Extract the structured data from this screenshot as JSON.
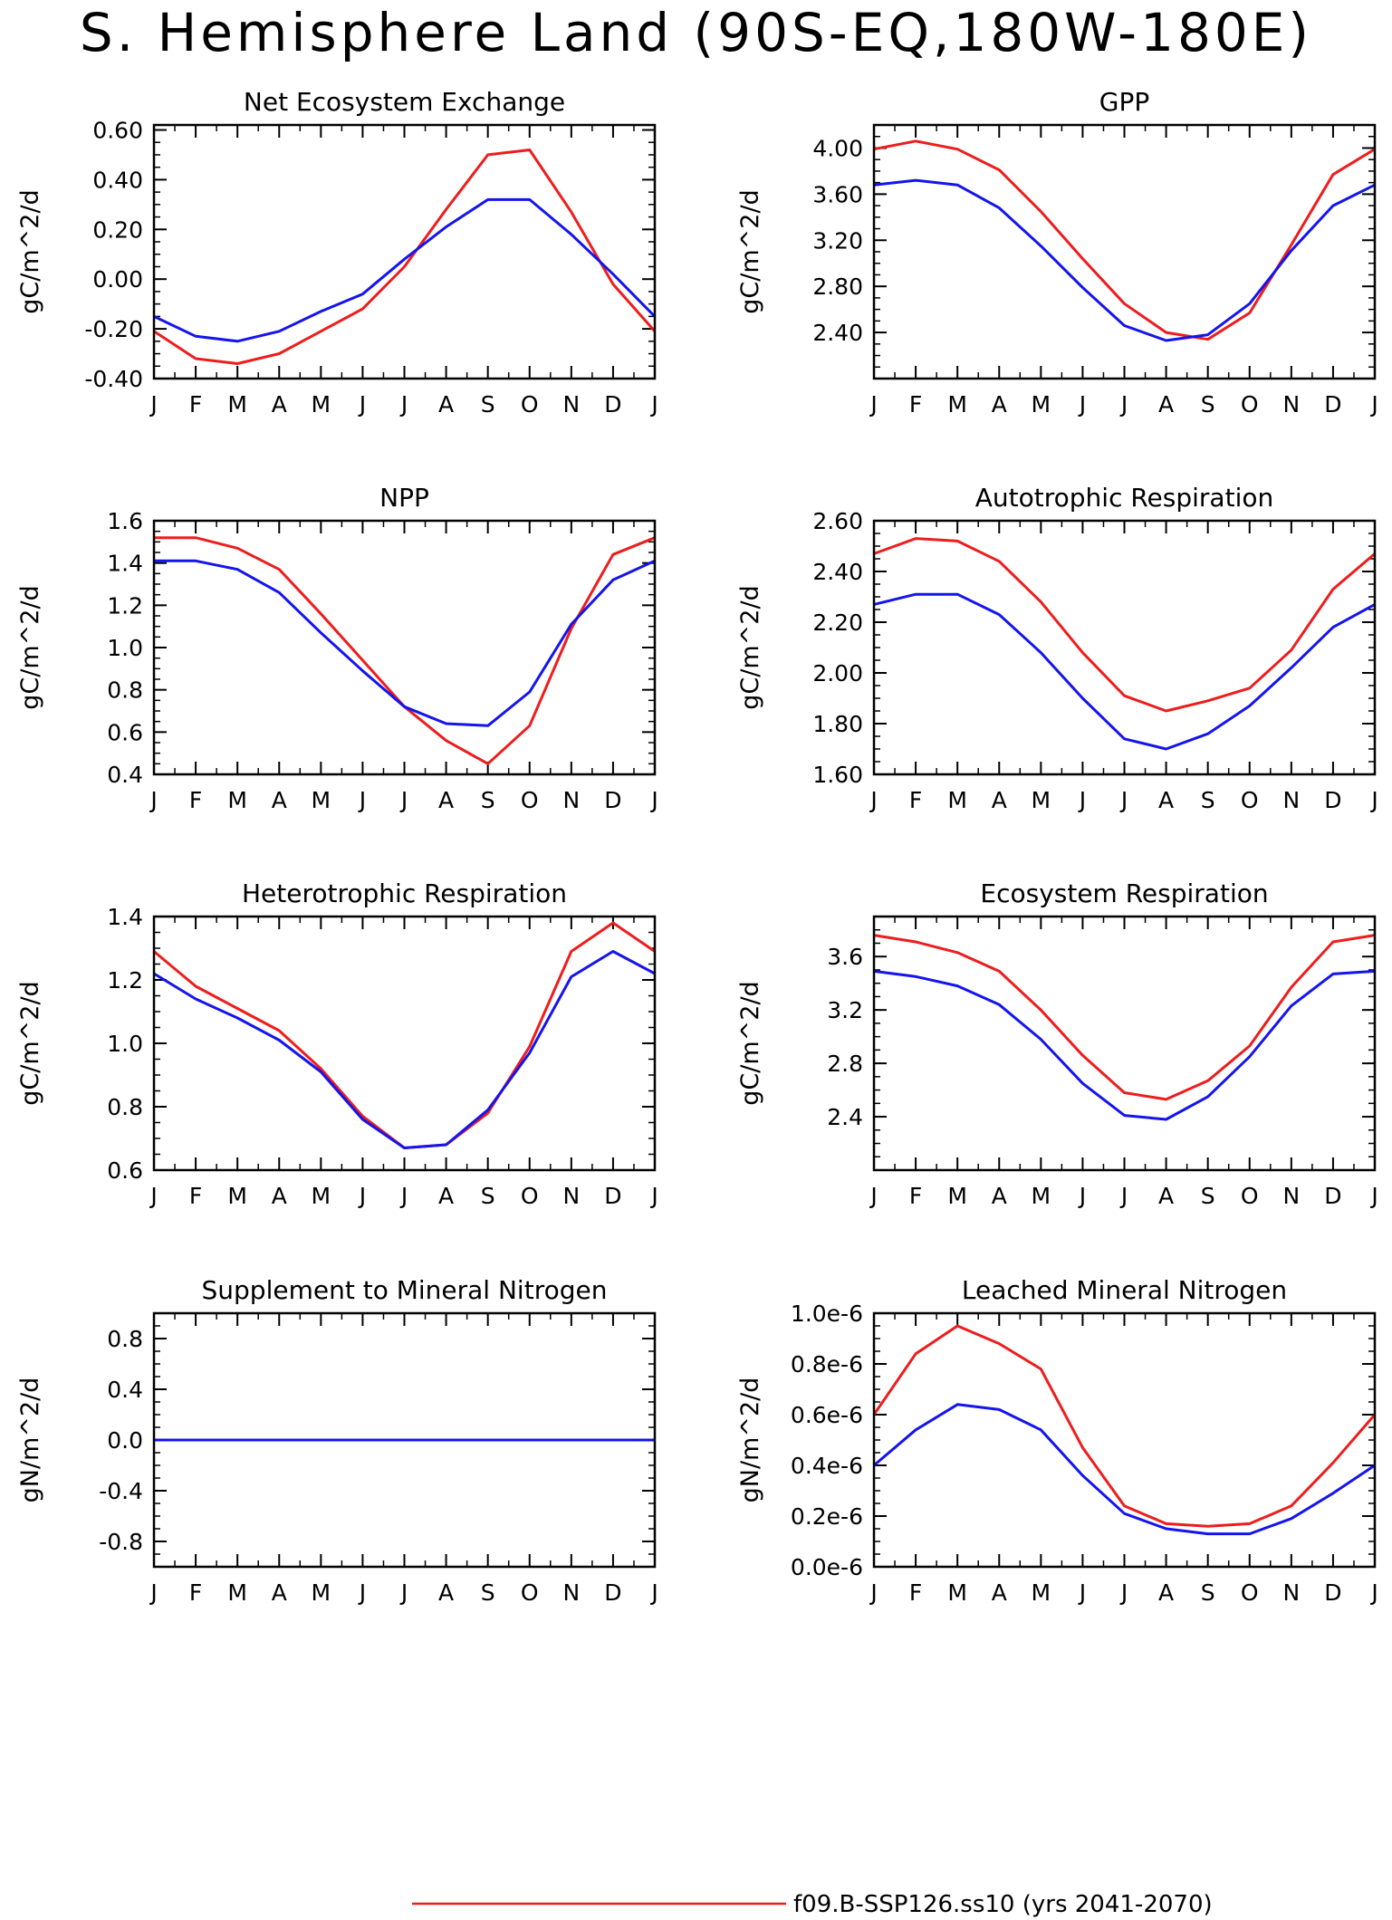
{
  "page_title": "S. Hemisphere Land (90S-EQ,180W-180E)",
  "series": [
    {
      "key": "red",
      "color": "#ee1c1c",
      "legend": "f09.B-SSP126.ss10 (yrs 2041-2070)"
    },
    {
      "key": "blue",
      "color": "#1414ee"
    }
  ],
  "months": [
    "J",
    "F",
    "M",
    "A",
    "M",
    "J",
    "J",
    "A",
    "S",
    "O",
    "N",
    "D",
    "J"
  ],
  "chart_data": [
    {
      "type": "line",
      "title": "Net Ecosystem Exchange",
      "ylabel": "gC/m^2/d",
      "ylim": [
        -0.4,
        0.62
      ],
      "yticks": [
        -0.4,
        -0.2,
        0.0,
        0.2,
        0.4,
        0.6
      ],
      "ytick_labels": [
        "-0.40",
        "-0.20",
        "0.00",
        "0.20",
        "0.40",
        "0.60"
      ],
      "series": {
        "red": [
          -0.21,
          -0.32,
          -0.34,
          -0.3,
          -0.21,
          -0.12,
          0.05,
          0.28,
          0.5,
          0.52,
          0.27,
          -0.02,
          -0.21
        ],
        "blue": [
          -0.15,
          -0.23,
          -0.25,
          -0.21,
          -0.13,
          -0.06,
          0.08,
          0.21,
          0.32,
          0.32,
          0.18,
          0.02,
          -0.15
        ]
      }
    },
    {
      "type": "line",
      "title": "GPP",
      "ylabel": "gC/m^2/d",
      "ylim": [
        2.0,
        4.2
      ],
      "yticks": [
        2.4,
        2.8,
        3.2,
        3.6,
        4.0
      ],
      "ytick_labels": [
        "2.40",
        "2.80",
        "3.20",
        "3.60",
        "4.00"
      ],
      "series": {
        "red": [
          3.99,
          4.06,
          3.99,
          3.81,
          3.45,
          3.04,
          2.65,
          2.4,
          2.34,
          2.57,
          3.16,
          3.77,
          3.99
        ],
        "blue": [
          3.68,
          3.72,
          3.68,
          3.48,
          3.15,
          2.79,
          2.46,
          2.33,
          2.38,
          2.65,
          3.11,
          3.5,
          3.68
        ]
      }
    },
    {
      "type": "line",
      "title": "NPP",
      "ylabel": "gC/m^2/d",
      "ylim": [
        0.4,
        1.6
      ],
      "yticks": [
        0.4,
        0.6,
        0.8,
        1.0,
        1.2,
        1.4,
        1.6
      ],
      "ytick_labels": [
        "0.4",
        "0.6",
        "0.8",
        "1.0",
        "1.2",
        "1.4",
        "1.6"
      ],
      "series": {
        "red": [
          1.52,
          1.52,
          1.47,
          1.37,
          1.16,
          0.94,
          0.72,
          0.56,
          0.45,
          0.63,
          1.09,
          1.44,
          1.52
        ],
        "blue": [
          1.41,
          1.41,
          1.37,
          1.26,
          1.07,
          0.89,
          0.72,
          0.64,
          0.63,
          0.79,
          1.11,
          1.32,
          1.41
        ]
      }
    },
    {
      "type": "line",
      "title": "Autotrophic Respiration",
      "ylabel": "gC/m^2/d",
      "ylim": [
        1.6,
        2.6
      ],
      "yticks": [
        1.6,
        1.8,
        2.0,
        2.2,
        2.4,
        2.6
      ],
      "ytick_labels": [
        "1.60",
        "1.80",
        "2.00",
        "2.20",
        "2.40",
        "2.60"
      ],
      "series": {
        "red": [
          2.47,
          2.53,
          2.52,
          2.44,
          2.28,
          2.08,
          1.91,
          1.85,
          1.89,
          1.94,
          2.09,
          2.33,
          2.47
        ],
        "blue": [
          2.27,
          2.31,
          2.31,
          2.23,
          2.08,
          1.9,
          1.74,
          1.7,
          1.76,
          1.87,
          2.02,
          2.18,
          2.27
        ]
      }
    },
    {
      "type": "line",
      "title": "Heterotrophic Respiration",
      "ylabel": "gC/m^2/d",
      "ylim": [
        0.6,
        1.4
      ],
      "yticks": [
        0.6,
        0.8,
        1.0,
        1.2,
        1.4
      ],
      "ytick_labels": [
        "0.6",
        "0.8",
        "1.0",
        "1.2",
        "1.4"
      ],
      "series": {
        "red": [
          1.29,
          1.18,
          1.11,
          1.04,
          0.92,
          0.77,
          0.67,
          0.68,
          0.78,
          0.99,
          1.29,
          1.38,
          1.29
        ],
        "blue": [
          1.22,
          1.14,
          1.08,
          1.01,
          0.91,
          0.76,
          0.67,
          0.68,
          0.79,
          0.97,
          1.21,
          1.29,
          1.22
        ]
      }
    },
    {
      "type": "line",
      "title": "Ecosystem Respiration",
      "ylabel": "gC/m^2/d",
      "ylim": [
        2.0,
        3.9
      ],
      "yticks": [
        2.4,
        2.8,
        3.2,
        3.6
      ],
      "ytick_labels": [
        "2.4",
        "2.8",
        "3.2",
        "3.6"
      ],
      "series": {
        "red": [
          3.76,
          3.71,
          3.63,
          3.49,
          3.2,
          2.86,
          2.58,
          2.53,
          2.67,
          2.93,
          3.37,
          3.71,
          3.76
        ],
        "blue": [
          3.49,
          3.45,
          3.38,
          3.24,
          2.98,
          2.65,
          2.41,
          2.38,
          2.55,
          2.85,
          3.23,
          3.47,
          3.49
        ]
      }
    },
    {
      "type": "line",
      "title": "Supplement to Mineral Nitrogen",
      "ylabel": "gN/m^2/d",
      "ylim": [
        -1.0,
        1.0
      ],
      "yticks": [
        -0.8,
        -0.4,
        0.0,
        0.4,
        0.8
      ],
      "ytick_labels": [
        "-0.8",
        "-0.4",
        "0.0",
        "0.4",
        "0.8"
      ],
      "series": {
        "red": [
          0,
          0,
          0,
          0,
          0,
          0,
          0,
          0,
          0,
          0,
          0,
          0,
          0
        ],
        "blue": [
          0,
          0,
          0,
          0,
          0,
          0,
          0,
          0,
          0,
          0,
          0,
          0,
          0
        ]
      }
    },
    {
      "type": "line",
      "title": "Leached Mineral Nitrogen",
      "ylabel": "gN/m^2/d",
      "ylim": [
        0.0,
        1e-06
      ],
      "yticks": [
        0.0,
        2e-07,
        4e-07,
        6e-07,
        8e-07,
        1e-06
      ],
      "ytick_labels": [
        "0.0e-6",
        "0.2e-6",
        "0.4e-6",
        "0.6e-6",
        "0.8e-6",
        "1.0e-6"
      ],
      "series": {
        "red": [
          6e-07,
          8.4e-07,
          9.5e-07,
          8.8e-07,
          7.8e-07,
          4.7e-07,
          2.4e-07,
          1.7e-07,
          1.6e-07,
          1.7e-07,
          2.4e-07,
          4.1e-07,
          6e-07
        ],
        "blue": [
          4e-07,
          5.4e-07,
          6.4e-07,
          6.2e-07,
          5.4e-07,
          3.6e-07,
          2.1e-07,
          1.5e-07,
          1.3e-07,
          1.3e-07,
          1.9e-07,
          2.9e-07,
          4e-07
        ]
      }
    }
  ]
}
